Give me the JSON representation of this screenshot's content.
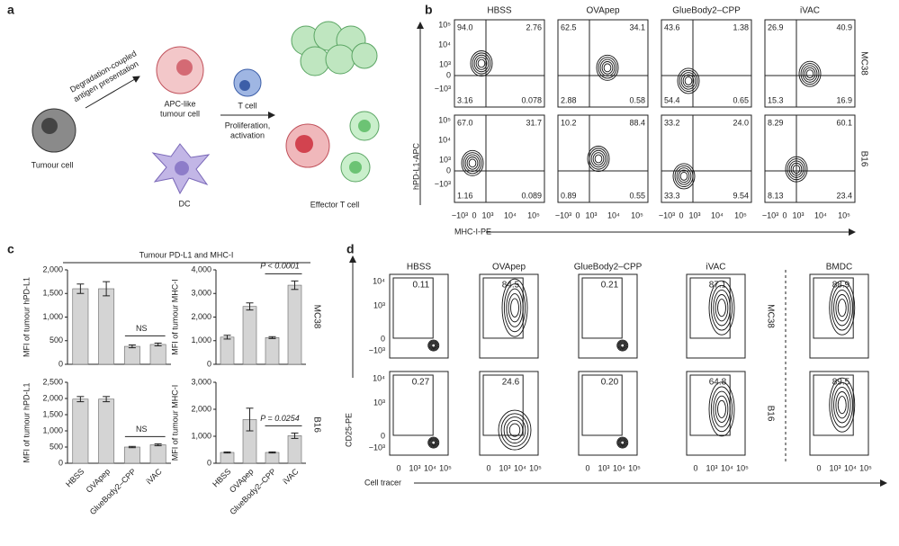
{
  "panel_a": {
    "label": "a",
    "arrow_label": [
      "Degradation-coupled",
      "antigen presentation"
    ],
    "tumour_cell": "Tumour cell",
    "apc": [
      "APC-like",
      "tumour cell"
    ],
    "t_cell": "T cell",
    "prolif": [
      "Proliferation,",
      "activation"
    ],
    "dc": "DC",
    "effector": "Effector T cell"
  },
  "panel_b": {
    "label": "b",
    "columns": [
      "HBSS",
      "OVApep",
      "GlueBody2–CPP",
      "iVAC"
    ],
    "rows": [
      "MC38",
      "B16"
    ],
    "quadrants": [
      [
        [
          "94.0",
          "2.76",
          "3.16",
          "0.078"
        ],
        [
          "62.5",
          "34.1",
          "2.88",
          "0.58"
        ],
        [
          "43.6",
          "1.38",
          "54.4",
          "0.65"
        ],
        [
          "26.9",
          "40.9",
          "15.3",
          "16.9"
        ]
      ],
      [
        [
          "67.0",
          "31.7",
          "1.16",
          "0.089"
        ],
        [
          "10.2",
          "88.4",
          "0.89",
          "0.55"
        ],
        [
          "33.2",
          "24.0",
          "33.3",
          "9.54"
        ],
        [
          "8.29",
          "60.1",
          "8.13",
          "23.4"
        ]
      ]
    ],
    "y_ticks": [
      "10⁵",
      "10⁴",
      "10³",
      "0",
      "−10³"
    ],
    "x_ticks": [
      "−10³",
      "0",
      "10³",
      "10⁴",
      "10⁵"
    ],
    "y_axis": "hPD-L1-APC",
    "x_axis": "MHC-I-PE"
  },
  "panel_c": {
    "label": "c",
    "title": "Tumour PD-L1 and MHC-I",
    "rows": [
      "MC38",
      "B16"
    ]
  },
  "chart_data": [
    {
      "type": "bar",
      "ylabel": "MFI of tumour hPD-L1",
      "categories": [
        null,
        null,
        null,
        null
      ],
      "values": [
        1600,
        1600,
        380,
        420
      ],
      "errors": [
        100,
        150,
        30,
        30
      ],
      "color": "#d4d4d4",
      "ylim": [
        0,
        2000
      ],
      "yticks": [
        0,
        500,
        {
          "value": 1000,
          "label": "1,000"
        },
        {
          "value": 1500,
          "label": "1,500"
        },
        {
          "value": 2000,
          "label": "2,000"
        }
      ],
      "annotation": "NS"
    },
    {
      "type": "bar",
      "ylabel": "MFI of tumour MHC-I",
      "categories": [
        null,
        null,
        null,
        null
      ],
      "values": [
        1150,
        2450,
        1130,
        3350
      ],
      "errors": [
        80,
        150,
        40,
        180
      ],
      "color": "#d4d4d4",
      "ylim": [
        0,
        4000
      ],
      "yticks": [
        0,
        {
          "value": 1000,
          "label": "1,000"
        },
        {
          "value": 2000,
          "label": "2,000"
        },
        {
          "value": 3000,
          "label": "3,000"
        },
        {
          "value": 4000,
          "label": "4,000"
        }
      ],
      "annotation": "P < 0.0001"
    },
    {
      "type": "bar",
      "ylabel": "MFI of tumour hPD-L1",
      "categories": [
        "HBSS",
        "OVApep",
        "GlueBody2–CPP",
        "iVAC"
      ],
      "values": [
        1980,
        1980,
        500,
        570
      ],
      "errors": [
        80,
        80,
        20,
        30
      ],
      "color": "#d4d4d4",
      "ylim": [
        0,
        2500
      ],
      "yticks": [
        0,
        500,
        {
          "value": 1000,
          "label": "1,000"
        },
        {
          "value": 1500,
          "label": "1,500"
        },
        {
          "value": 2000,
          "label": "2,000"
        },
        {
          "value": 2500,
          "label": "2,500"
        }
      ],
      "annotation": "NS"
    },
    {
      "type": "bar",
      "ylabel": "MFI of tumour MHC-I",
      "categories": [
        "HBSS",
        "OVApep",
        "GlueBody2–CPP",
        "iVAC"
      ],
      "values": [
        400,
        1620,
        400,
        1020
      ],
      "errors": [
        20,
        420,
        20,
        100
      ],
      "color": "#d4d4d4",
      "ylim": [
        0,
        3000
      ],
      "yticks": [
        0,
        {
          "value": 1000,
          "label": "1,000"
        },
        {
          "value": 2000,
          "label": "2,000"
        },
        {
          "value": 3000,
          "label": "3,000"
        }
      ],
      "annotation": "P = 0.0254"
    }
  ],
  "panel_d": {
    "label": "d",
    "columns": [
      "HBSS",
      "OVApep",
      "GlueBody2–CPP",
      "iVAC",
      "BMDC"
    ],
    "rows": [
      "MC38",
      "B16"
    ],
    "gates": [
      [
        "0.11",
        "84.5",
        "0.21",
        "87.1",
        "88.9"
      ],
      [
        "0.27",
        "24.6",
        "0.20",
        "64.8",
        "89.5"
      ]
    ],
    "y_ticks": [
      "10⁴",
      "10³",
      "0",
      "−10³"
    ],
    "x_ticks": [
      "0",
      "10³",
      "10⁴",
      "10⁵"
    ],
    "y_axis": "CD25-PE",
    "x_axis": "Cell tracer"
  }
}
